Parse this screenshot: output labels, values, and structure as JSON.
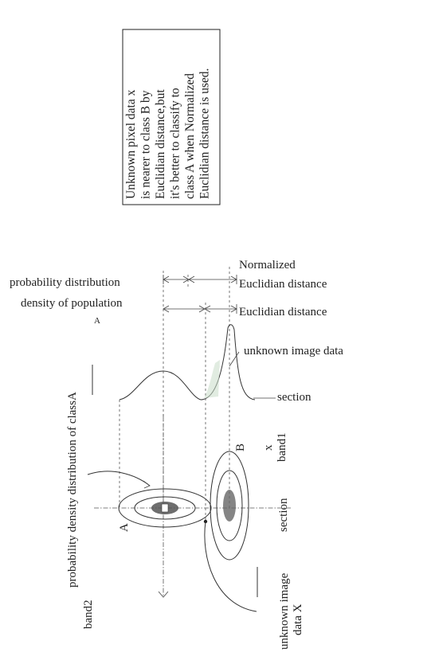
{
  "note_box": {
    "lines": [
      "Unknown pixel data x",
      "is nearer to class B by",
      "Euclidian distance,but",
      "it's better to classify to",
      "class A when Normalized",
      "Euclidian distance is used."
    ]
  },
  "labels": {
    "normalized_1": "Normalized",
    "normalized_2": "Euclidian distance",
    "euclidian": "Euclidian distance",
    "prob_dist_1": "probability distribution",
    "prob_dist_2": "density of population",
    "small_a": "A",
    "unknown_image_data": "unknown image data",
    "section_top": "section",
    "x_mark": "x",
    "band1": "band1",
    "b_label": "B",
    "section_mid": "section",
    "pdd_class_a": "probability density distribution of classA",
    "a_label": "A",
    "unknown_data_x_1": "unknown image",
    "unknown_data_x_2": "data X",
    "band2": "band2"
  }
}
